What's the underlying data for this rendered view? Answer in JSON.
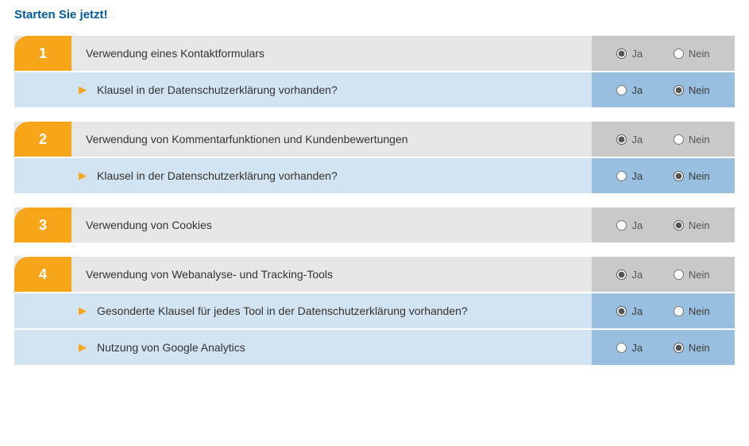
{
  "page": {
    "title": "Starten Sie jetzt!"
  },
  "options": {
    "yes": "Ja",
    "no": "Nein"
  },
  "colors": {
    "accent_orange": "#f7a61a",
    "title_blue": "#005a9e",
    "main_row_bg": "#e7e7e7",
    "main_options_bg": "#c9c9c9",
    "sub_row_bg": "#d2e3f1",
    "sub_options_bg": "#98bfe0"
  },
  "sections": [
    {
      "number": "1",
      "question": "Verwendung eines Kontaktformulars",
      "selected": "yes",
      "children": [
        {
          "question": "Klausel in der Datenschutzerklärung vorhanden?",
          "selected": "no"
        }
      ]
    },
    {
      "number": "2",
      "question": "Verwendung von Kommentarfunktionen und Kundenbewertungen",
      "selected": "yes",
      "children": [
        {
          "question": "Klausel in der Datenschutzerklärung vorhanden?",
          "selected": "no"
        }
      ]
    },
    {
      "number": "3",
      "question": "Verwendung von Cookies",
      "selected": "no",
      "children": []
    },
    {
      "number": "4",
      "question": "Verwendung von Webanalyse- und Tracking-Tools",
      "selected": "yes",
      "children": [
        {
          "question": "Gesonderte Klausel für jedes Tool in der Datenschutzerklärung vorhanden?",
          "selected": "yes"
        },
        {
          "question": "Nutzung von Google Analytics",
          "selected": "no"
        }
      ]
    }
  ]
}
